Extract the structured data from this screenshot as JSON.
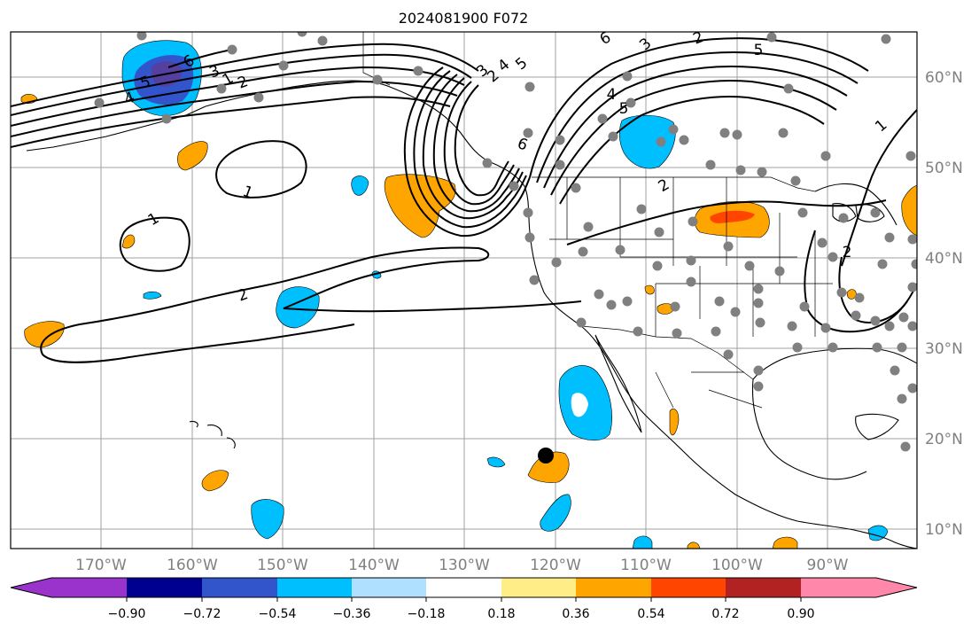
{
  "title": "2024081900 F072",
  "latitude_labels": [
    "60°N",
    "50°N",
    "40°N",
    "30°N",
    "20°N",
    "10°N"
  ],
  "longitude_labels": [
    "170°W",
    "160°W",
    "150°W",
    "140°W",
    "130°W",
    "120°W",
    "110°W",
    "100°W",
    "90°W"
  ],
  "colorbar": {
    "labels": [
      "−0.90",
      "−0.72",
      "−0.54",
      "−0.36",
      "−0.18",
      "0.18",
      "0.36",
      "0.54",
      "0.72",
      "0.90"
    ],
    "colors": [
      "#9933cc",
      "#000090",
      "#3355cc",
      "#00bfff",
      "#b0e0ff",
      "#ffffff",
      "#ffee88",
      "#ffa500",
      "#ff4500",
      "#b22222",
      "#ff88aa"
    ]
  },
  "contour_labels": [
    "6",
    "5",
    "4",
    "3",
    "2",
    "1",
    "1",
    "1",
    "2",
    "6",
    "5",
    "4",
    "3",
    "2",
    "6",
    "3",
    "2",
    "5",
    "4",
    "5",
    "2",
    "1",
    "2"
  ],
  "map_colors": {
    "ocean": "#ffffff",
    "grid": "#a0a0a0",
    "station": "#808080",
    "marker": "#000000"
  }
}
